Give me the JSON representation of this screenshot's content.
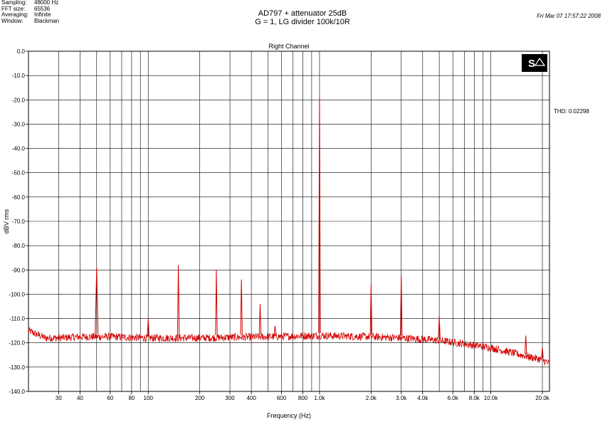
{
  "header": {
    "meta": [
      {
        "key": "Sampling:",
        "value": "48000 Hz"
      },
      {
        "key": "FFT size:",
        "value": "65536"
      },
      {
        "key": "Averaging:",
        "value": "Infinite"
      },
      {
        "key": "Window:",
        "value": "Blackman"
      }
    ],
    "title_line1": "AD797 + attenuator 25dB",
    "title_line2": "G = 1, LG divider 100k/10R",
    "date": "Fri Mar 07 17:57:22 2008"
  },
  "thd_text": "THD: 0.02298",
  "logo": {
    "text": "S",
    "icon": "spectralab-logo"
  },
  "colors": {
    "trace": "#d40000",
    "grid": "#000000",
    "background": "#ffffff"
  },
  "chart_data": {
    "type": "line",
    "title": "Right Channel",
    "xlabel": "Frequency (Hz)",
    "ylabel": "dBV rms",
    "xscale": "log",
    "xlim": [
      20,
      22000
    ],
    "ylim": [
      -140,
      0
    ],
    "grid": true,
    "x_ticks": [
      {
        "v": 30,
        "label": "30"
      },
      {
        "v": 40,
        "label": "40"
      },
      {
        "v": 60,
        "label": "60"
      },
      {
        "v": 80,
        "label": "80"
      },
      {
        "v": 100,
        "label": "100"
      },
      {
        "v": 200,
        "label": "200"
      },
      {
        "v": 300,
        "label": "300"
      },
      {
        "v": 400,
        "label": "400"
      },
      {
        "v": 600,
        "label": "600"
      },
      {
        "v": 800,
        "label": "800"
      },
      {
        "v": 1000,
        "label": "1.0k"
      },
      {
        "v": 2000,
        "label": "2.0k"
      },
      {
        "v": 3000,
        "label": "3.0k"
      },
      {
        "v": 4000,
        "label": "4.0k"
      },
      {
        "v": 6000,
        "label": "6.0k"
      },
      {
        "v": 8000,
        "label": "8.0k"
      },
      {
        "v": 10000,
        "label": "10.0k"
      },
      {
        "v": 20000,
        "label": "20.0k"
      }
    ],
    "y_ticks": [
      {
        "v": 0,
        "label": "0.0"
      },
      {
        "v": -10,
        "label": "-10.0"
      },
      {
        "v": -20,
        "label": "-20.0"
      },
      {
        "v": -30,
        "label": "-30.0"
      },
      {
        "v": -40,
        "label": "-40.0"
      },
      {
        "v": -50,
        "label": "-50.0"
      },
      {
        "v": -60,
        "label": "-60.0"
      },
      {
        "v": -70,
        "label": "-70.0"
      },
      {
        "v": -80,
        "label": "-80.0"
      },
      {
        "v": -90,
        "label": "-90.0"
      },
      {
        "v": -100,
        "label": "-100.0"
      },
      {
        "v": -110,
        "label": "-110.0"
      },
      {
        "v": -120,
        "label": "-120.0"
      },
      {
        "v": -130,
        "label": "-130.0"
      },
      {
        "v": -140,
        "label": "-140.0"
      }
    ],
    "minor_gridlines_x": [
      50,
      70,
      90,
      500,
      700,
      900,
      5000,
      7000,
      9000
    ],
    "noise_floor": [
      {
        "x": 20,
        "y": -115
      },
      {
        "x": 25,
        "y": -118
      },
      {
        "x": 30,
        "y": -118
      },
      {
        "x": 40,
        "y": -117.5
      },
      {
        "x": 60,
        "y": -117.5
      },
      {
        "x": 100,
        "y": -118
      },
      {
        "x": 200,
        "y": -118
      },
      {
        "x": 500,
        "y": -117.5
      },
      {
        "x": 1000,
        "y": -117
      },
      {
        "x": 2000,
        "y": -117.5
      },
      {
        "x": 3000,
        "y": -118
      },
      {
        "x": 5000,
        "y": -119
      },
      {
        "x": 8000,
        "y": -121
      },
      {
        "x": 10000,
        "y": -122
      },
      {
        "x": 15000,
        "y": -125
      },
      {
        "x": 20000,
        "y": -127
      },
      {
        "x": 22000,
        "y": -128.5
      }
    ],
    "peaks": [
      {
        "x": 50,
        "y": -89
      },
      {
        "x": 100,
        "y": -110
      },
      {
        "x": 150,
        "y": -88
      },
      {
        "x": 250,
        "y": -90
      },
      {
        "x": 350,
        "y": -94
      },
      {
        "x": 450,
        "y": -104
      },
      {
        "x": 550,
        "y": -113
      },
      {
        "x": 1000,
        "y": -19
      },
      {
        "x": 2000,
        "y": -96
      },
      {
        "x": 3000,
        "y": -92
      },
      {
        "x": 5000,
        "y": -109
      },
      {
        "x": 16000,
        "y": -117
      },
      {
        "x": 20000,
        "y": -122
      }
    ]
  }
}
